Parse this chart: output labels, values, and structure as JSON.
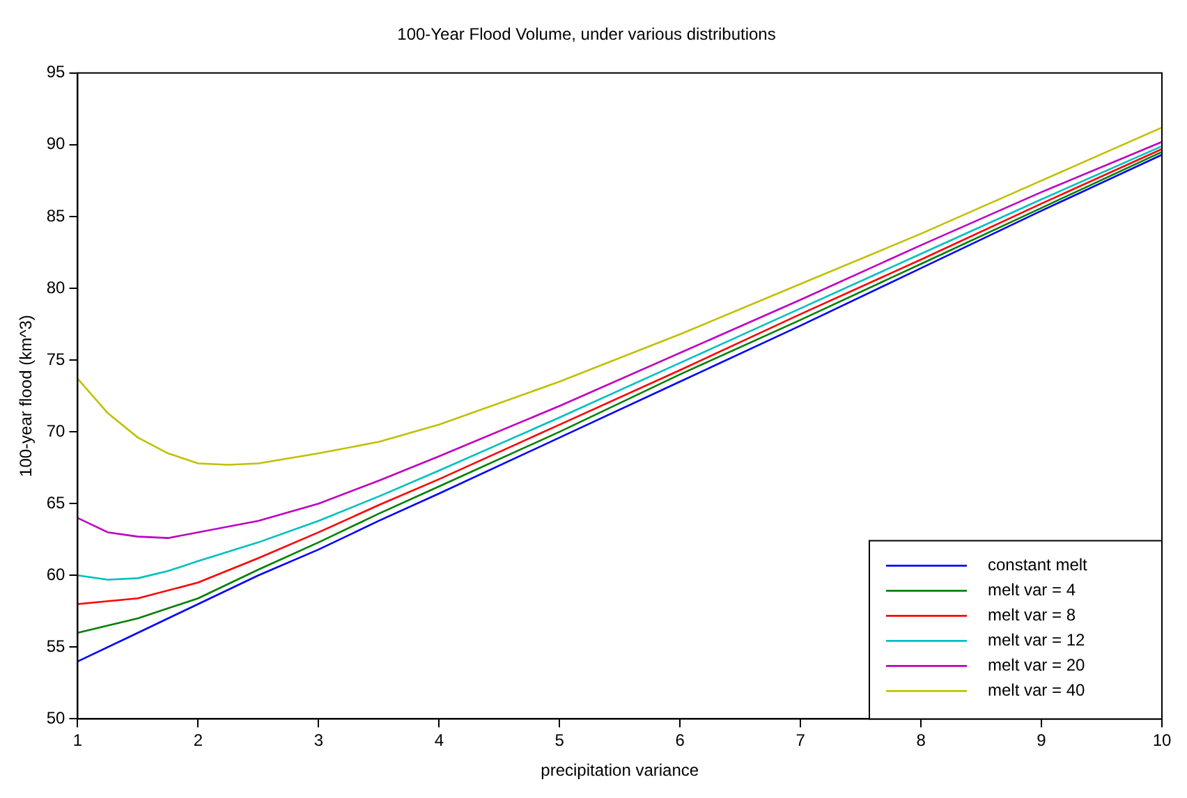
{
  "chart_data": {
    "type": "line",
    "title": "100-Year Flood Volume, under various distributions",
    "xlabel": "precipitation variance",
    "ylabel": "100-year flood (km^3)",
    "xlim": [
      1,
      10
    ],
    "xticks": [
      1,
      2,
      3,
      4,
      5,
      6,
      7,
      8,
      9,
      10
    ],
    "ylim": [
      50,
      95
    ],
    "yticks": [
      50,
      55,
      60,
      65,
      70,
      75,
      80,
      85,
      90,
      95
    ],
    "grid": false,
    "legend": "bottom right",
    "marker": "none",
    "line_style": "solid",
    "series": [
      {
        "name": "constant melt",
        "color": "#0000ff",
        "x": [
          1,
          1.5,
          2,
          2.5,
          3,
          3.5,
          4,
          5,
          6,
          7,
          8,
          9,
          10
        ],
        "values": [
          54,
          56,
          58,
          60,
          61.8,
          63.8,
          65.7,
          69.6,
          73.5,
          77.4,
          81.4,
          85.4,
          89.3
        ]
      },
      {
        "name": "melt var = 4",
        "color": "#008000",
        "x": [
          1,
          1.5,
          2,
          2.5,
          3,
          3.5,
          4,
          5,
          6,
          7,
          8,
          9,
          10
        ],
        "values": [
          56,
          57,
          58.4,
          60.4,
          62.3,
          64.3,
          66.2,
          70,
          74,
          77.8,
          81.7,
          85.6,
          89.5
        ]
      },
      {
        "name": "melt var = 8",
        "color": "#ff0000",
        "x": [
          1,
          1.5,
          2,
          2.5,
          3,
          3.5,
          4,
          5,
          6,
          7,
          8,
          9,
          10
        ],
        "values": [
          58,
          58.4,
          59.5,
          61.2,
          63,
          64.9,
          66.7,
          70.5,
          74.3,
          78.2,
          82,
          85.9,
          89.7
        ]
      },
      {
        "name": "melt var = 12",
        "color": "#00c0c0",
        "x": [
          1,
          1.25,
          1.5,
          1.75,
          2,
          2.5,
          3,
          3.5,
          4,
          5,
          6,
          7,
          8,
          9,
          10
        ],
        "values": [
          60,
          59.7,
          59.8,
          60.3,
          61,
          62.3,
          63.8,
          65.5,
          67.3,
          71,
          74.8,
          78.6,
          82.4,
          86.2,
          89.9
        ]
      },
      {
        "name": "melt var = 20",
        "color": "#c000c0",
        "x": [
          1,
          1.25,
          1.5,
          1.75,
          2,
          2.5,
          3,
          3.5,
          4,
          5,
          6,
          7,
          8,
          9,
          10
        ],
        "values": [
          64,
          63,
          62.7,
          62.6,
          63,
          63.8,
          65,
          66.6,
          68.3,
          71.8,
          75.5,
          79.2,
          83,
          86.7,
          90.2
        ]
      },
      {
        "name": "melt var = 40",
        "color": "#c0c000",
        "x": [
          1,
          1.25,
          1.5,
          1.75,
          2,
          2.25,
          2.5,
          3,
          3.5,
          4,
          5,
          6,
          7,
          8,
          9,
          10
        ],
        "values": [
          73.7,
          71.3,
          69.6,
          68.5,
          67.8,
          67.7,
          67.8,
          68.5,
          69.3,
          70.5,
          73.5,
          76.8,
          80.3,
          83.8,
          87.5,
          91.2
        ]
      }
    ]
  }
}
